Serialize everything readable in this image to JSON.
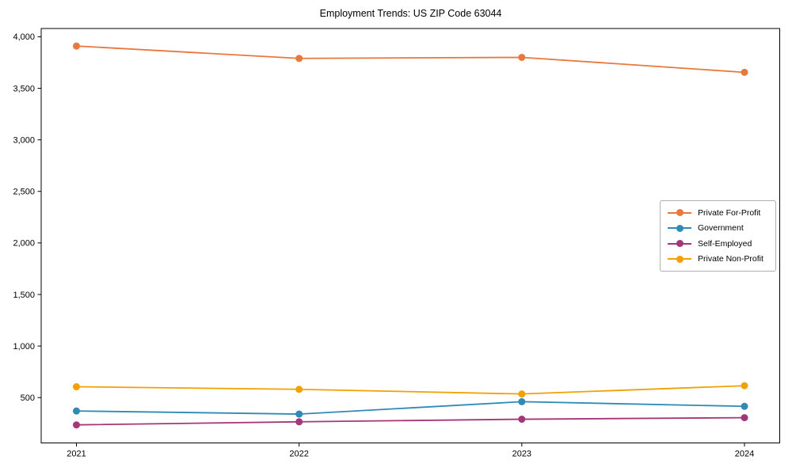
{
  "page": {
    "background": "#ffffff",
    "text_color": "#000000",
    "axis_color": "#000000",
    "legend_border_color": "#b0b0b0"
  },
  "chart_data": {
    "type": "line",
    "title": "Employment Trends: US ZIP Code 63044",
    "xlabel": "",
    "ylabel": "",
    "categories": [
      "2021",
      "2022",
      "2023",
      "2024"
    ],
    "series": [
      {
        "name": "Private For-Profit",
        "color": "#e8783c",
        "values": [
          3910,
          3790,
          3800,
          3655
        ]
      },
      {
        "name": "Government",
        "color": "#2f8ab5",
        "values": [
          370,
          340,
          460,
          415
        ]
      },
      {
        "name": "Self-Employed",
        "color": "#a53778",
        "values": [
          235,
          265,
          290,
          305
        ]
      },
      {
        "name": "Private Non-Profit",
        "color": "#f2a104",
        "values": [
          605,
          580,
          535,
          615
        ]
      }
    ],
    "yticks": [
      500,
      1000,
      1500,
      2000,
      2500,
      3000,
      3500,
      4000
    ],
    "ytick_labels": [
      "500",
      "1,000",
      "1,500",
      "2,000",
      "2,500",
      "3,000",
      "3,500",
      "4,000"
    ],
    "ylim": [
      60,
      4080
    ],
    "grid": false,
    "legend_position": "center right",
    "marker": "circle"
  }
}
